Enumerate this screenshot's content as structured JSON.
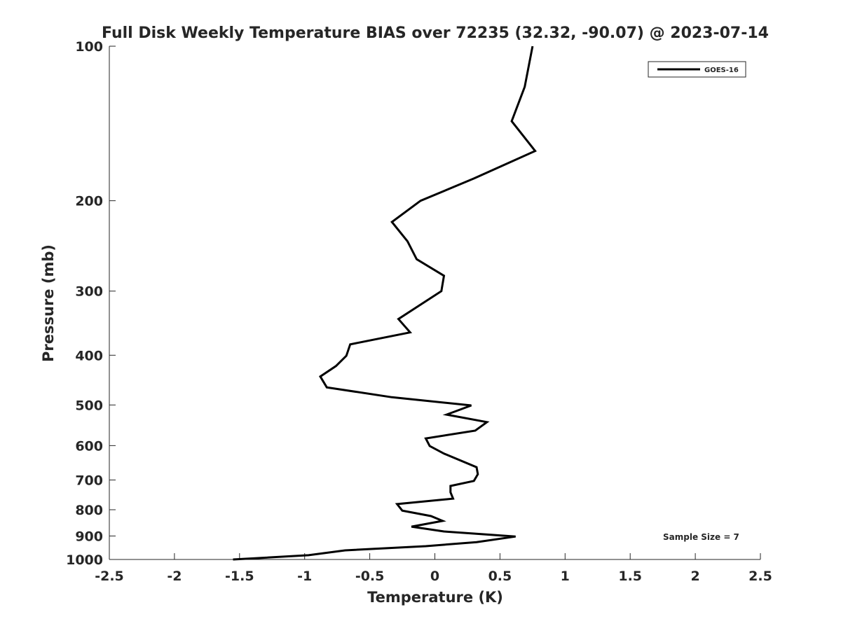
{
  "chart_data": {
    "type": "line",
    "title": "Full Disk Weekly Temperature BIAS over 72235 (32.32, -90.07) @ 2023-07-14",
    "xlabel": "Temperature (K)",
    "ylabel": "Pressure (mb)",
    "xlim": [
      -2.5,
      2.5
    ],
    "ylim": [
      100,
      1000
    ],
    "yscale": "log",
    "yreversed": true,
    "grid": false,
    "xticks": [
      "-2.5",
      "-2",
      "-1.5",
      "-1",
      "-0.5",
      "0",
      "0.5",
      "1",
      "1.5",
      "2",
      "2.5"
    ],
    "xtick_values": [
      -2.5,
      -2,
      -1.5,
      -1,
      -0.5,
      0,
      0.5,
      1,
      1.5,
      2,
      2.5
    ],
    "yticks": [
      "100",
      "200",
      "300",
      "400",
      "500",
      "600",
      "700",
      "800",
      "900",
      "1000"
    ],
    "ytick_values": [
      100,
      200,
      300,
      400,
      500,
      600,
      700,
      800,
      900,
      1000
    ],
    "legend_position": "top-right",
    "annotation": "Sample Size = 7",
    "series": [
      {
        "name": "GOES-16",
        "color": "#000000",
        "x": [
          0.75,
          0.69,
          0.59,
          0.77,
          0.3,
          -0.11,
          -0.33,
          -0.21,
          -0.14,
          0.07,
          0.05,
          -0.28,
          -0.19,
          -0.65,
          -0.68,
          -0.76,
          -0.88,
          -0.83,
          -0.33,
          0.28,
          0.09,
          0.4,
          0.31,
          -0.07,
          -0.04,
          0.07,
          0.32,
          0.33,
          0.3,
          0.12,
          0.12,
          0.14,
          -0.29,
          -0.25,
          -0.03,
          0.06,
          -0.18,
          0.07,
          0.62,
          0.32,
          -0.07,
          -0.69,
          -0.97,
          -1.55
        ],
        "y": [
          100,
          120,
          140,
          160,
          181,
          200,
          220,
          240,
          260,
          280,
          300,
          340,
          361,
          381,
          401,
          420,
          440,
          462,
          483,
          501,
          522,
          540,
          561,
          581,
          601,
          622,
          661,
          682,
          703,
          719,
          740,
          761,
          780,
          803,
          823,
          841,
          863,
          882,
          902,
          925,
          942,
          960,
          981,
          1000
        ]
      }
    ]
  }
}
